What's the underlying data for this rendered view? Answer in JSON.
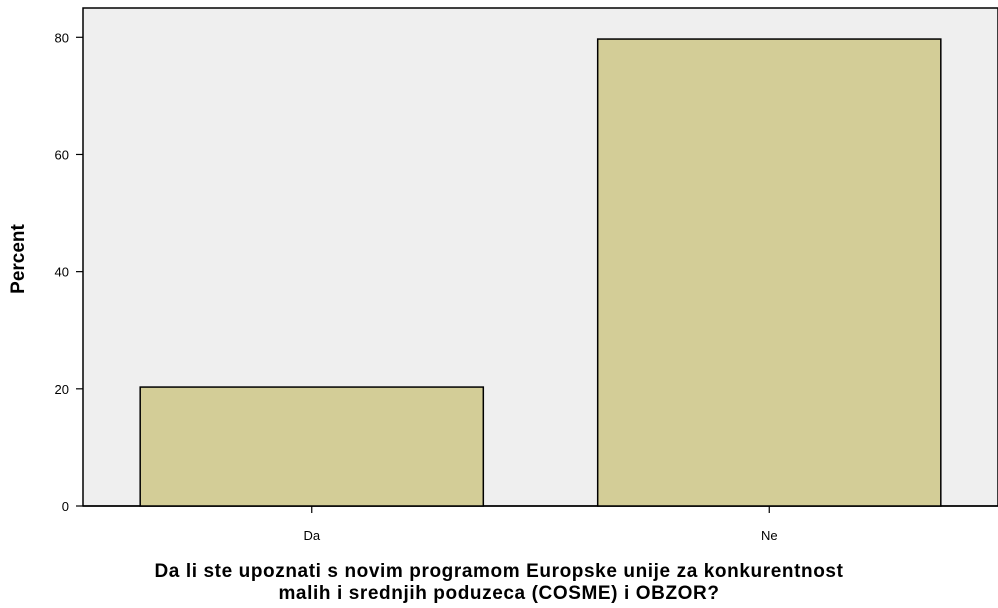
{
  "chart_data": {
    "type": "bar",
    "categories": [
      "Da",
      "Ne"
    ],
    "values": [
      20.3,
      79.7
    ],
    "title": "",
    "xlabel_lines": [
      "Da li ste upoznati s novim programom Europske unije za konkurentnost",
      "malih i srednjih poduzeca (COSME) i OBZOR?"
    ],
    "ylabel": "Percent",
    "ylim": [
      0,
      85
    ],
    "yticks": [
      0,
      20,
      40,
      60,
      80
    ],
    "grid": false,
    "legend": "none",
    "colors": {
      "plot_background": "#efefef",
      "bar_fill": "#d3cd97",
      "bar_stroke": "#000000"
    }
  }
}
